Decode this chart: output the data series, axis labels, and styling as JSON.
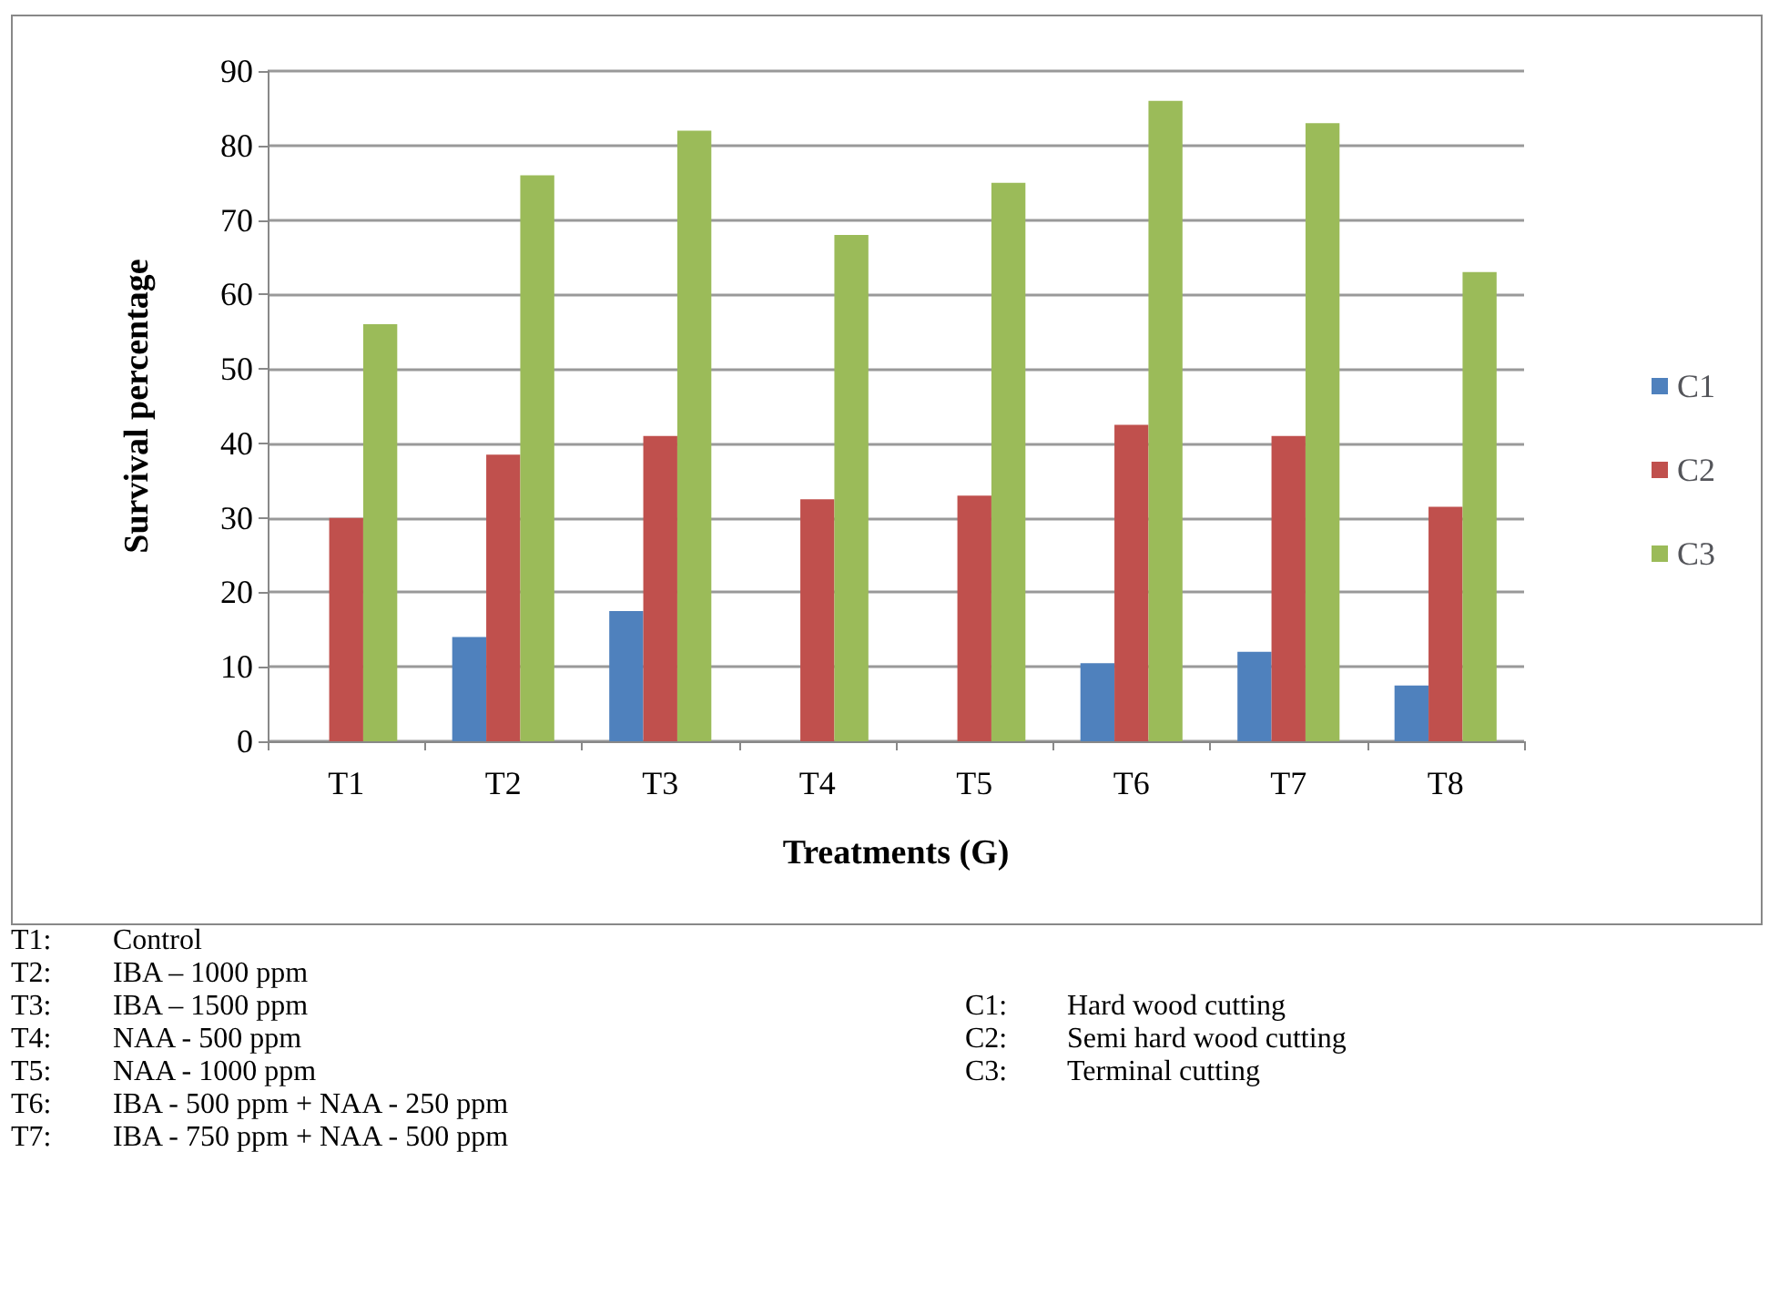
{
  "chart_data": {
    "type": "bar",
    "xlabel": "Treatments (G)",
    "ylabel": "Survival percentage",
    "categories": [
      "T1",
      "T2",
      "T3",
      "T4",
      "T5",
      "T6",
      "T7",
      "T8"
    ],
    "series": [
      {
        "name": "C1",
        "color": "#4f81bd",
        "values": [
          0,
          14,
          17.5,
          0,
          0,
          10.5,
          12,
          7.5
        ]
      },
      {
        "name": "C2",
        "color": "#c0504d",
        "values": [
          30,
          38.5,
          41,
          32.5,
          33,
          42.5,
          41,
          31.5
        ]
      },
      {
        "name": "C3",
        "color": "#9bbb59",
        "values": [
          56,
          76,
          82,
          68,
          75,
          86,
          83,
          63
        ]
      }
    ],
    "ylim": [
      0,
      90
    ],
    "yticks": [
      0,
      10,
      20,
      30,
      40,
      50,
      60,
      70,
      80,
      90
    ],
    "grid": "y",
    "legend": "right",
    "annotations": [
      "T1: Control",
      "T2: IBA – 1000 ppm",
      "T3: IBA – 1500 ppm",
      "T4: NAA - 500 ppm",
      "T5: NAA - 1000 ppm",
      "T6: IBA - 500 ppm + NAA - 250 ppm",
      "T7: IBA - 750 ppm + NAA - 500 ppm",
      "C1: Hard wood cutting",
      "C2: Semi hard wood cutting",
      "C3: Terminal cutting"
    ]
  }
}
